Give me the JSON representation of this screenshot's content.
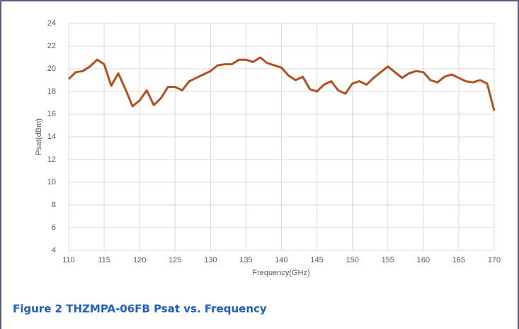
{
  "chart_data": {
    "type": "line",
    "caption": "Figure 2 THZMPA-06FB Psat vs. Frequency",
    "x_label": "Frequency(GHz)",
    "y_label": "Psat(dBm)",
    "color": "#b4501e",
    "x": [
      110,
      111,
      112,
      113,
      114,
      115,
      116,
      117,
      118,
      119,
      120,
      121,
      122,
      123,
      124,
      125,
      126,
      127,
      128,
      129,
      130,
      131,
      132,
      133,
      134,
      135,
      136,
      137,
      138,
      139,
      140,
      141,
      142,
      143,
      144,
      145,
      146,
      147,
      148,
      149,
      150,
      151,
      152,
      153,
      154,
      155,
      156,
      157,
      158,
      159,
      160,
      161,
      162,
      163,
      164,
      165,
      166,
      167,
      168,
      169,
      170
    ],
    "values": [
      19.1,
      19.7,
      19.8,
      20.2,
      20.8,
      20.4,
      18.5,
      19.6,
      18.2,
      16.7,
      17.2,
      18.1,
      16.8,
      17.4,
      18.4,
      18.4,
      18.1,
      18.9,
      19.2,
      19.5,
      19.8,
      20.3,
      20.4,
      20.4,
      20.8,
      20.8,
      20.6,
      21.0,
      20.5,
      20.3,
      20.1,
      19.4,
      19.0,
      19.3,
      18.2,
      18.0,
      18.6,
      18.9,
      18.1,
      17.8,
      18.7,
      18.9,
      18.6,
      19.2,
      19.7,
      20.2,
      19.7,
      19.2,
      19.6,
      19.8,
      19.7,
      19.0,
      18.8,
      19.3,
      19.5,
      19.2,
      18.9,
      18.8,
      19.0,
      18.7,
      16.3
    ],
    "xlim": [
      110,
      170
    ],
    "xticks": [
      110,
      115,
      120,
      125,
      130,
      135,
      140,
      145,
      150,
      155,
      160,
      165,
      170
    ],
    "ylim": [
      4,
      24
    ],
    "yticks": [
      4,
      6,
      8,
      10,
      12,
      14,
      16,
      18,
      20,
      22,
      24
    ],
    "grid": true
  }
}
